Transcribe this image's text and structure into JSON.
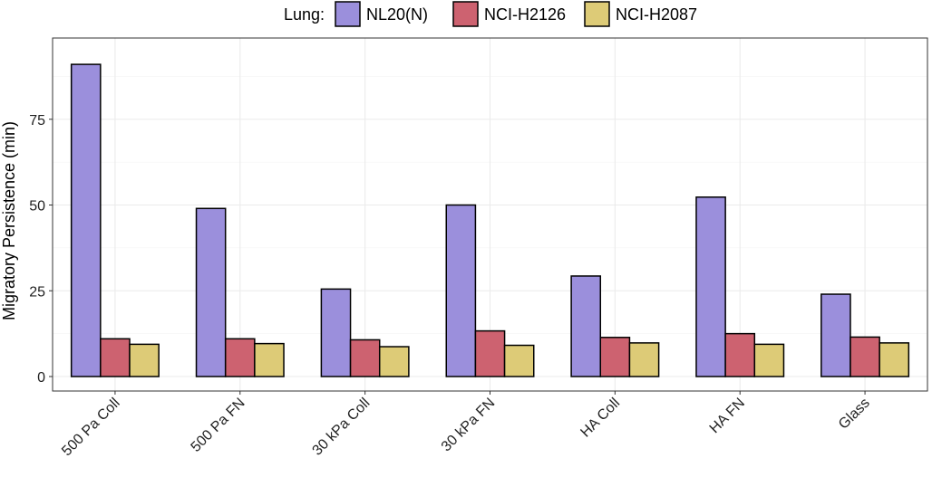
{
  "chart_data": {
    "type": "bar",
    "title": "",
    "xlabel": "",
    "ylabel": "Migratory Persistence (min)",
    "ylim": [
      0,
      95
    ],
    "yticks": [
      0,
      25,
      50,
      75
    ],
    "grid": true,
    "legend_title": "Lung:",
    "legend_position": "top",
    "categories": [
      "500 Pa Coll",
      "500 Pa FN",
      "30 kPa Coll",
      "30 kPa FN",
      "HA Coll",
      "HA FN",
      "Glass"
    ],
    "series": [
      {
        "name": "NL20(N)",
        "color": "#9b8fdc",
        "values": [
          91,
          49,
          25.5,
          50,
          29.3,
          52.3,
          24
        ]
      },
      {
        "name": "NCI-H2126",
        "color": "#cd6270",
        "values": [
          11,
          11,
          10.7,
          13.3,
          11.4,
          12.5,
          11.5
        ]
      },
      {
        "name": "NCI-H2087",
        "color": "#ddcb77",
        "values": [
          9.4,
          9.6,
          8.7,
          9.1,
          9.8,
          9.4,
          9.8
        ]
      }
    ]
  }
}
